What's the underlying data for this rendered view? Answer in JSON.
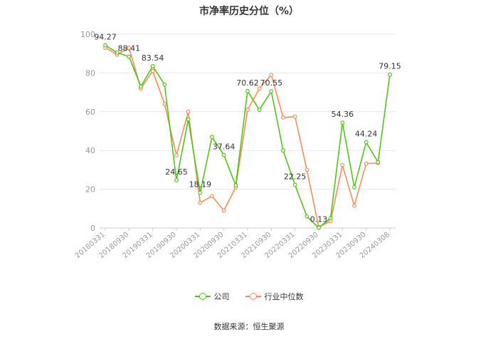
{
  "title": "市净率历史分位（%）",
  "source": "数据来源：恒生聚源",
  "colors": {
    "company": "#52c41a",
    "industry": "#fa8c5a",
    "grid": "#e8e8e8",
    "axis": "#999999"
  },
  "chart_data": {
    "type": "line",
    "title": "市净率历史分位（%）",
    "ylim": [
      0,
      100
    ],
    "yticks": [
      0,
      20,
      40,
      60,
      80,
      100
    ],
    "grid": true,
    "legend_position": "bottom",
    "x": [
      "20180331",
      "20180630",
      "20180930",
      "20181231",
      "20190331",
      "20190630",
      "20190930",
      "20191231",
      "20200331",
      "20200630",
      "20200930",
      "20201231",
      "20210331",
      "20210630",
      "20210930",
      "20211231",
      "20220331",
      "20220630",
      "20220930",
      "20221231",
      "20230331",
      "20230630",
      "20230930",
      "20231231",
      "20240308"
    ],
    "xtick_labels": [
      "20180331",
      "20180930",
      "20190331",
      "20190930",
      "20200331",
      "20200930",
      "20210331",
      "20210930",
      "20220331",
      "20220930",
      "20230331",
      "20230930",
      "20240308"
    ],
    "series": [
      {
        "name": "公司",
        "values": [
          94.27,
          90.5,
          88.41,
          73,
          83.54,
          74,
          24.65,
          56,
          18.19,
          47,
          37.64,
          22,
          70.62,
          61,
          70.55,
          40,
          22.25,
          6,
          0.13,
          5,
          54.36,
          21,
          44.24,
          34,
          79.15
        ],
        "labels": {
          "0": "94.27",
          "2": "88.41",
          "4": "83.54",
          "6": "24.65",
          "8": "18.19",
          "10": "37.64",
          "12": "70.62",
          "14": "70.55",
          "16": "22.25",
          "18": "0.13",
          "20": "54.36",
          "22": "44.24",
          "24": "79.15"
        }
      },
      {
        "name": "行业中位数",
        "values": [
          93,
          89.5,
          93,
          72,
          81,
          64,
          37.5,
          60,
          13,
          16.5,
          9,
          21,
          61,
          72,
          79,
          57,
          57.5,
          30,
          0.5,
          3.5,
          32.5,
          11.5,
          33.2,
          33.5,
          null
        ]
      }
    ]
  }
}
